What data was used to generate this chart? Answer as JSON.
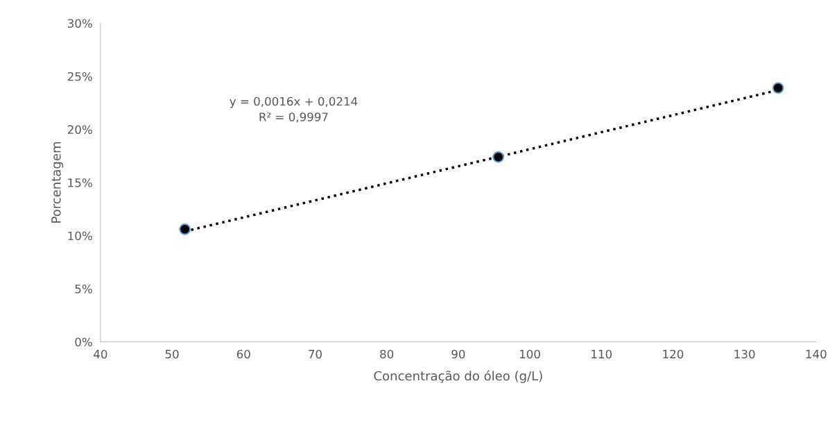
{
  "chart_data": {
    "type": "scatter",
    "xlabel": "Concentração do óleo (g/L)",
    "ylabel": "Porcentagem",
    "xlim": [
      40,
      140
    ],
    "xticks": [
      40,
      50,
      60,
      70,
      80,
      90,
      100,
      110,
      120,
      130,
      140
    ],
    "ylim": [
      0,
      30
    ],
    "yticks": [
      {
        "value": 0,
        "label": "0%"
      },
      {
        "value": 5,
        "label": "5%"
      },
      {
        "value": 10,
        "label": "10%"
      },
      {
        "value": 15,
        "label": "15%"
      },
      {
        "value": 20,
        "label": "20%"
      },
      {
        "value": 25,
        "label": "25%"
      },
      {
        "value": 30,
        "label": "30%"
      }
    ],
    "grid": false,
    "legend": false,
    "series": [
      {
        "color": "#000000",
        "x": [
          51.8,
          95.6,
          134.7
        ],
        "values": [
          10.6,
          17.4,
          23.9
        ],
        "marker": "circle"
      },
      {
        "type": "line",
        "color": "#000000",
        "x": [
          51.8,
          134.7
        ],
        "values": [
          10.4,
          23.7
        ],
        "line_style": "dotted",
        "marker": "none"
      }
    ],
    "annotations": [
      "y = 0,0016x + 0,0214\nR² = 0,9997"
    ]
  }
}
